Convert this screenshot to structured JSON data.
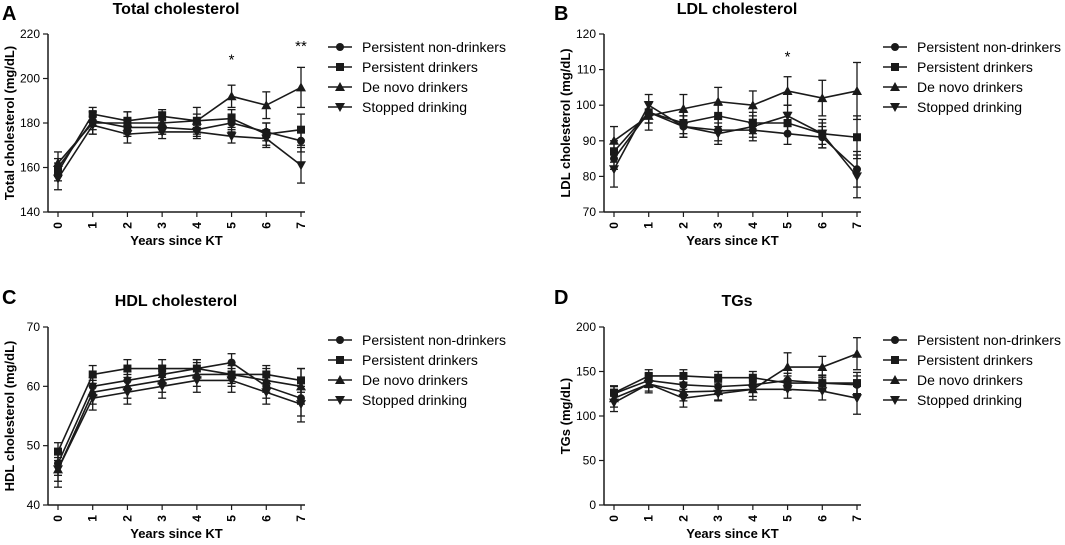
{
  "colors": {
    "ink": "#1a1a1a"
  },
  "chart_data": [
    {
      "panel": "A",
      "type": "line",
      "title": "Total cholesterol",
      "xlabel": "Years since KT",
      "ylabel": "Total cholesterol (mg/dL)",
      "x": [
        0,
        1,
        2,
        3,
        4,
        5,
        6,
        7
      ],
      "xticks": [
        "0",
        "1",
        "2",
        "3",
        "4",
        "5",
        "6",
        "7"
      ],
      "ylim": [
        140,
        220
      ],
      "yticks": [
        140,
        160,
        180,
        200,
        220
      ],
      "legend_position": "right",
      "annotations": [
        {
          "x": 5,
          "y": 209,
          "text": "*"
        },
        {
          "x": 7,
          "y": 215,
          "text": "**"
        }
      ],
      "series": [
        {
          "name": "Persistent non-drinkers",
          "marker": "circle",
          "values": [
            160,
            181,
            178,
            178,
            177,
            180,
            176,
            172
          ],
          "errors": [
            4,
            4,
            4,
            3,
            3,
            4,
            4,
            5
          ]
        },
        {
          "name": "Persistent drinkers",
          "marker": "square",
          "values": [
            158,
            184,
            181,
            183,
            181,
            182,
            175,
            177
          ],
          "errors": [
            4,
            3,
            4,
            3,
            3,
            4,
            5,
            7
          ]
        },
        {
          "name": "De novo drinkers",
          "marker": "triangle-up",
          "values": [
            162,
            180,
            180,
            180,
            181,
            192,
            188,
            196
          ],
          "errors": [
            5,
            5,
            5,
            5,
            6,
            5,
            6,
            9
          ]
        },
        {
          "name": "Stopped drinking",
          "marker": "triangle-down",
          "values": [
            155,
            179,
            175,
            176,
            176,
            174,
            173,
            161
          ],
          "errors": [
            5,
            4,
            4,
            3,
            3,
            3,
            4,
            8
          ]
        }
      ]
    },
    {
      "panel": "B",
      "type": "line",
      "title": "LDL cholesterol",
      "xlabel": "Years since KT",
      "ylabel": "LDL cholesterol (mg/dL)",
      "x": [
        0,
        1,
        2,
        3,
        4,
        5,
        6,
        7
      ],
      "xticks": [
        "0",
        "1",
        "2",
        "3",
        "4",
        "5",
        "6",
        "7"
      ],
      "ylim": [
        70,
        120
      ],
      "yticks": [
        70,
        80,
        90,
        100,
        110,
        120
      ],
      "legend_position": "right",
      "annotations": [
        {
          "x": 5,
          "y": 114,
          "text": "*"
        }
      ],
      "series": [
        {
          "name": "Persistent non-drinkers",
          "marker": "circle",
          "values": [
            85,
            98,
            94,
            93,
            93,
            92,
            91,
            82
          ],
          "errors": [
            3,
            3,
            3,
            3,
            3,
            3,
            3,
            5
          ]
        },
        {
          "name": "Persistent drinkers",
          "marker": "square",
          "values": [
            87,
            98,
            95,
            97,
            95,
            95,
            92,
            91
          ],
          "errors": [
            3,
            3,
            3,
            3,
            3,
            3,
            3,
            6
          ]
        },
        {
          "name": "De novo drinkers",
          "marker": "triangle-up",
          "values": [
            90,
            97,
            99,
            101,
            100,
            104,
            102,
            104
          ],
          "errors": [
            4,
            4,
            4,
            4,
            4,
            4,
            5,
            8
          ]
        },
        {
          "name": "Stopped drinking",
          "marker": "triangle-down",
          "values": [
            82,
            100,
            94,
            92,
            94,
            97,
            92,
            80
          ],
          "errors": [
            5,
            3,
            3,
            3,
            3,
            3,
            4,
            6
          ]
        }
      ]
    },
    {
      "panel": "C",
      "type": "line",
      "title": "HDL cholesterol",
      "xlabel": "Years since KT",
      "ylabel": "HDL cholesterol (mg/dL)",
      "x": [
        0,
        1,
        2,
        3,
        4,
        5,
        6,
        7
      ],
      "xticks": [
        "0",
        "1",
        "2",
        "3",
        "4",
        "5",
        "6",
        "7"
      ],
      "ylim": [
        40,
        70
      ],
      "yticks": [
        40,
        50,
        60,
        70
      ],
      "legend_position": "right",
      "annotations": [],
      "series": [
        {
          "name": "Persistent non-drinkers",
          "marker": "circle",
          "values": [
            47,
            60,
            61,
            62,
            63,
            64,
            60,
            58
          ],
          "errors": [
            2,
            1.5,
            1.5,
            1.5,
            1.5,
            1.5,
            2,
            3
          ]
        },
        {
          "name": "Persistent drinkers",
          "marker": "square",
          "values": [
            49,
            62,
            63,
            63,
            63,
            62,
            62,
            61
          ],
          "errors": [
            1.5,
            1.5,
            1.5,
            1.5,
            1.5,
            1.5,
            1.5,
            2
          ]
        },
        {
          "name": "De novo drinkers",
          "marker": "triangle-up",
          "values": [
            46,
            59,
            60,
            61,
            62,
            62,
            61,
            60
          ],
          "errors": [
            2,
            2,
            2,
            2,
            2,
            2,
            2,
            3
          ]
        },
        {
          "name": "Stopped drinking",
          "marker": "triangle-down",
          "values": [
            46,
            58,
            59,
            60,
            61,
            61,
            59,
            57
          ],
          "errors": [
            3,
            2,
            2,
            2,
            2,
            2,
            2,
            3
          ]
        }
      ]
    },
    {
      "panel": "D",
      "type": "line",
      "title": "TGs",
      "xlabel": "Years since KT",
      "ylabel": "TGs (mg/dL)",
      "x": [
        0,
        1,
        2,
        3,
        4,
        5,
        6,
        7
      ],
      "xticks": [
        "0",
        "1",
        "2",
        "3",
        "4",
        "5",
        "6",
        "7"
      ],
      "ylim": [
        0,
        200
      ],
      "yticks": [
        0,
        50,
        100,
        150,
        200
      ],
      "legend_position": "right",
      "annotations": [],
      "series": [
        {
          "name": "Persistent non-drinkers",
          "marker": "circle",
          "values": [
            125,
            140,
            135,
            133,
            135,
            140,
            137,
            135
          ],
          "errors": [
            8,
            8,
            8,
            8,
            8,
            8,
            8,
            10
          ]
        },
        {
          "name": "Persistent drinkers",
          "marker": "square",
          "values": [
            126,
            145,
            145,
            143,
            143,
            137,
            137,
            137
          ],
          "errors": [
            8,
            7,
            7,
            7,
            7,
            8,
            9,
            12
          ]
        },
        {
          "name": "De novo drinkers",
          "marker": "triangle-up",
          "values": [
            120,
            136,
            127,
            128,
            130,
            155,
            155,
            170
          ],
          "errors": [
            10,
            10,
            10,
            10,
            12,
            16,
            12,
            18
          ]
        },
        {
          "name": "Stopped drinking",
          "marker": "triangle-down",
          "values": [
            115,
            136,
            120,
            125,
            130,
            130,
            128,
            120
          ],
          "errors": [
            10,
            8,
            10,
            8,
            8,
            10,
            10,
            18
          ]
        }
      ]
    }
  ]
}
